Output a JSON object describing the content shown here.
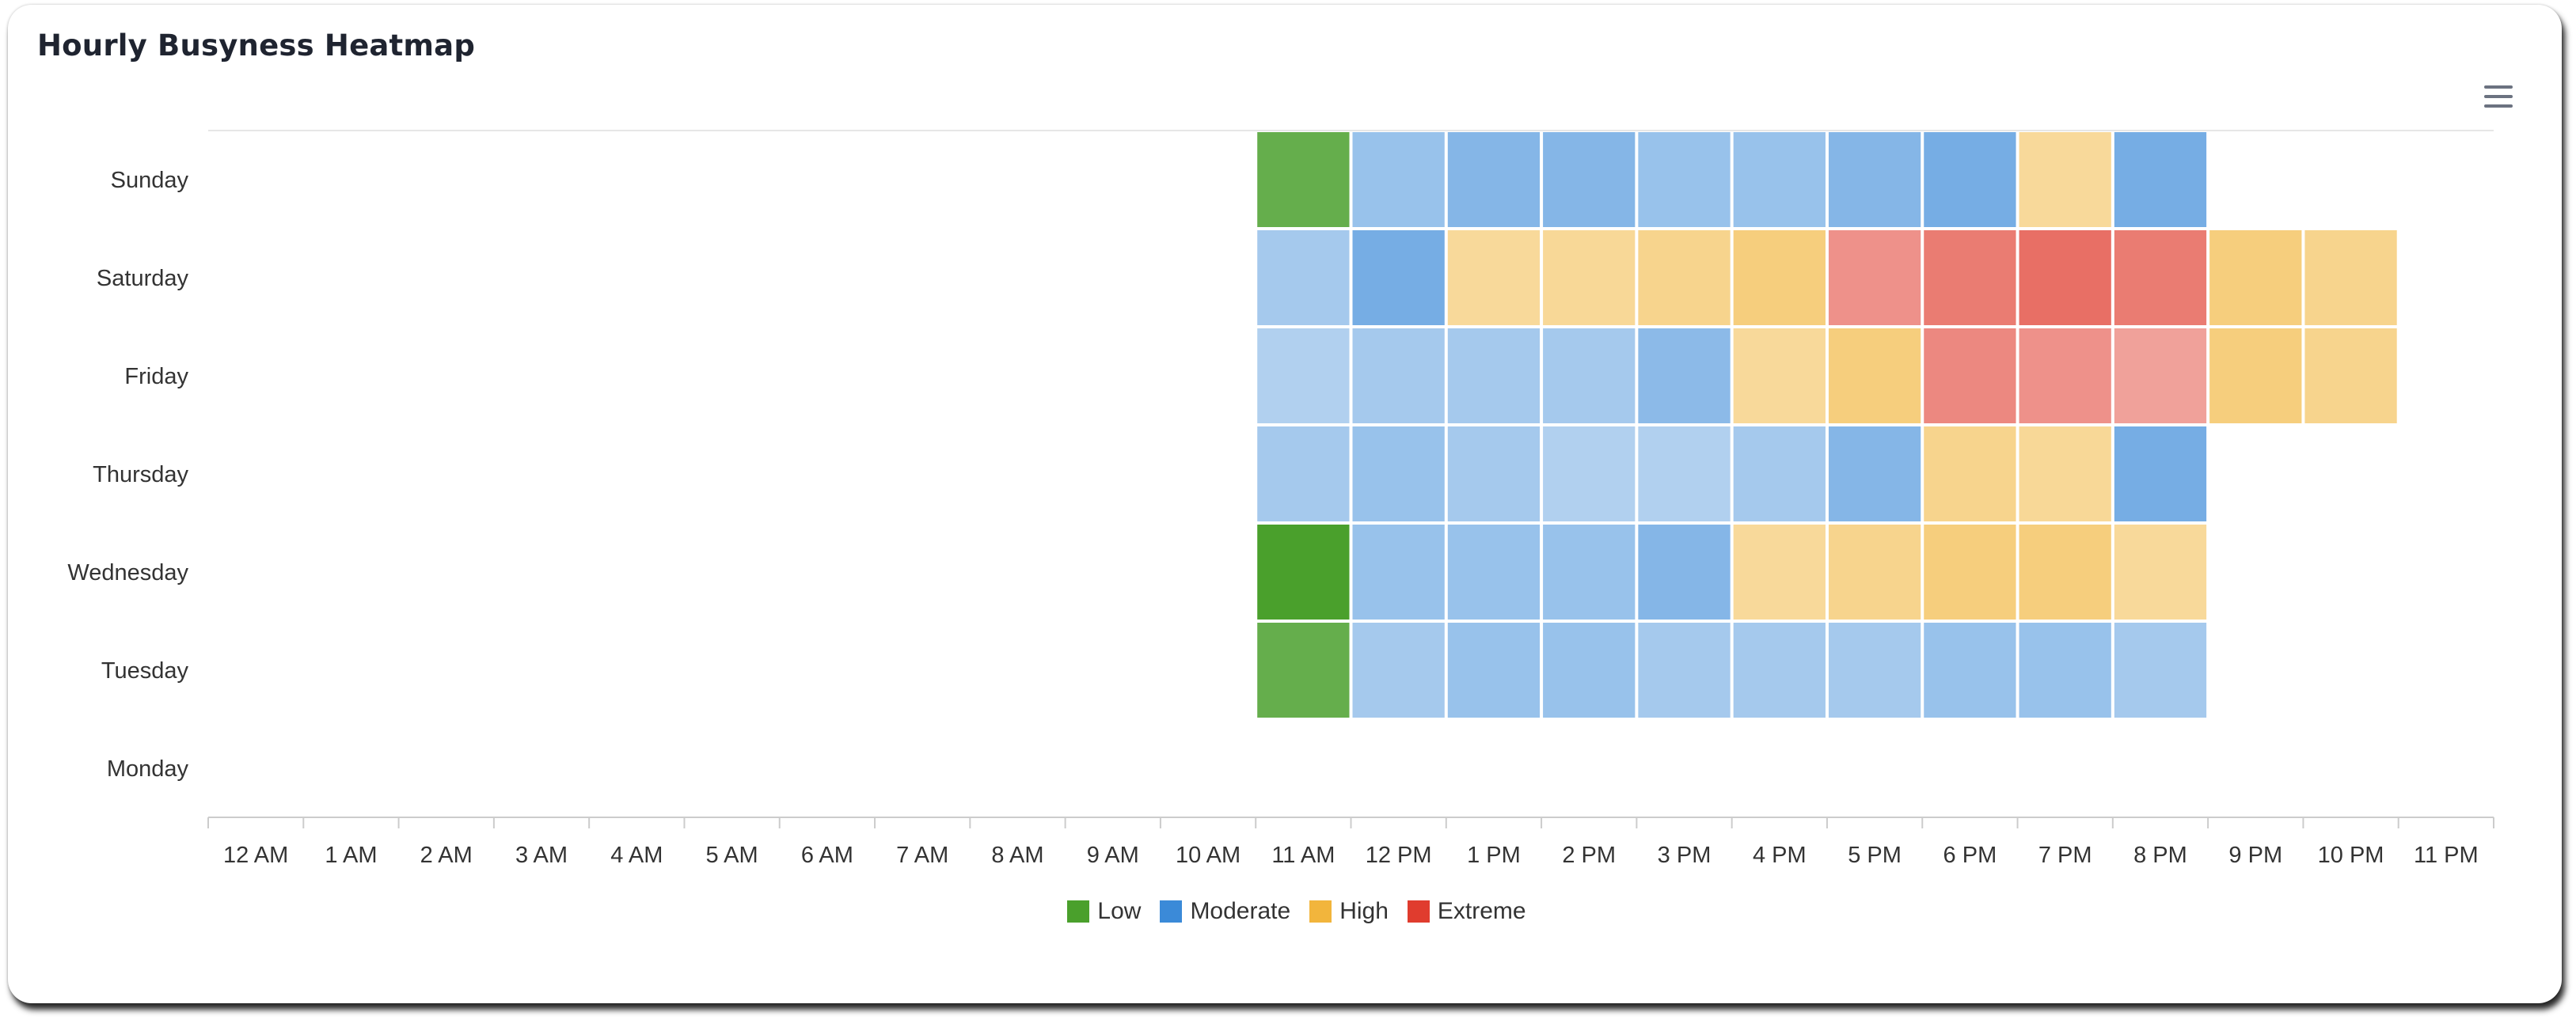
{
  "colors": {
    "low": "#4aa02c",
    "moderate": "#3b8ad8",
    "high": "#f2b53c",
    "extreme": "#e03c2e",
    "axis": "#cccccc",
    "label": "#333333"
  },
  "menu": {
    "icon": "hamburger-menu-icon"
  },
  "chart_data": {
    "type": "heatmap",
    "title": "Hourly Busyness Heatmap",
    "x_categories": [
      "12 AM",
      "1 AM",
      "2 AM",
      "3 AM",
      "4 AM",
      "5 AM",
      "6 AM",
      "7 AM",
      "8 AM",
      "9 AM",
      "10 AM",
      "11 AM",
      "12 PM",
      "1 PM",
      "2 PM",
      "3 PM",
      "4 PM",
      "5 PM",
      "6 PM",
      "7 PM",
      "8 PM",
      "9 PM",
      "10 PM",
      "11 PM"
    ],
    "y_categories": [
      "Sunday",
      "Saturday",
      "Friday",
      "Thursday",
      "Wednesday",
      "Tuesday",
      "Monday"
    ],
    "value_scale": "estimated busyness 0-100",
    "legend": [
      {
        "name": "Low",
        "color_key": "low"
      },
      {
        "name": "Moderate",
        "color_key": "moderate"
      },
      {
        "name": "High",
        "color_key": "high"
      },
      {
        "name": "Extreme",
        "color_key": "extreme"
      }
    ],
    "cells": [
      {
        "day": "Sunday",
        "hour": "11 AM",
        "level": "Low",
        "value": 18
      },
      {
        "day": "Sunday",
        "hour": "12 PM",
        "level": "Moderate",
        "value": 36
      },
      {
        "day": "Sunday",
        "hour": "1 PM",
        "level": "Moderate",
        "value": 42
      },
      {
        "day": "Sunday",
        "hour": "2 PM",
        "level": "Moderate",
        "value": 42
      },
      {
        "day": "Sunday",
        "hour": "3 PM",
        "level": "Moderate",
        "value": 36
      },
      {
        "day": "Sunday",
        "hour": "4 PM",
        "level": "Moderate",
        "value": 36
      },
      {
        "day": "Sunday",
        "hour": "5 PM",
        "level": "Moderate",
        "value": 42
      },
      {
        "day": "Sunday",
        "hour": "6 PM",
        "level": "Moderate",
        "value": 47
      },
      {
        "day": "Sunday",
        "hour": "7 PM",
        "level": "High",
        "value": 54
      },
      {
        "day": "Sunday",
        "hour": "8 PM",
        "level": "Moderate",
        "value": 47
      },
      {
        "day": "Saturday",
        "hour": "11 AM",
        "level": "Moderate",
        "value": 32
      },
      {
        "day": "Saturday",
        "hour": "12 PM",
        "level": "Moderate",
        "value": 47
      },
      {
        "day": "Saturday",
        "hour": "1 PM",
        "level": "High",
        "value": 54
      },
      {
        "day": "Saturday",
        "hour": "2 PM",
        "level": "High",
        "value": 55
      },
      {
        "day": "Saturday",
        "hour": "3 PM",
        "level": "High",
        "value": 58
      },
      {
        "day": "Saturday",
        "hour": "4 PM",
        "level": "High",
        "value": 63
      },
      {
        "day": "Saturday",
        "hour": "5 PM",
        "level": "Extreme",
        "value": 75
      },
      {
        "day": "Saturday",
        "hour": "6 PM",
        "level": "Extreme",
        "value": 82
      },
      {
        "day": "Saturday",
        "hour": "7 PM",
        "level": "Extreme",
        "value": 86
      },
      {
        "day": "Saturday",
        "hour": "8 PM",
        "level": "Extreme",
        "value": 82
      },
      {
        "day": "Saturday",
        "hour": "9 PM",
        "level": "High",
        "value": 63
      },
      {
        "day": "Saturday",
        "hour": "10 PM",
        "level": "High",
        "value": 58
      },
      {
        "day": "Friday",
        "hour": "11 AM",
        "level": "Moderate",
        "value": 28
      },
      {
        "day": "Friday",
        "hour": "12 PM",
        "level": "Moderate",
        "value": 32
      },
      {
        "day": "Friday",
        "hour": "1 PM",
        "level": "Moderate",
        "value": 32
      },
      {
        "day": "Friday",
        "hour": "2 PM",
        "level": "Moderate",
        "value": 32
      },
      {
        "day": "Friday",
        "hour": "3 PM",
        "level": "Moderate",
        "value": 40
      },
      {
        "day": "Friday",
        "hour": "4 PM",
        "level": "High",
        "value": 54
      },
      {
        "day": "Friday",
        "hour": "5 PM",
        "level": "High",
        "value": 63
      },
      {
        "day": "Friday",
        "hour": "6 PM",
        "level": "Extreme",
        "value": 78
      },
      {
        "day": "Friday",
        "hour": "7 PM",
        "level": "Extreme",
        "value": 75
      },
      {
        "day": "Friday",
        "hour": "8 PM",
        "level": "Extreme",
        "value": 70
      },
      {
        "day": "Friday",
        "hour": "9 PM",
        "level": "High",
        "value": 63
      },
      {
        "day": "Friday",
        "hour": "10 PM",
        "level": "High",
        "value": 58
      },
      {
        "day": "Thursday",
        "hour": "11 AM",
        "level": "Moderate",
        "value": 32
      },
      {
        "day": "Thursday",
        "hour": "12 PM",
        "level": "Moderate",
        "value": 36
      },
      {
        "day": "Thursday",
        "hour": "1 PM",
        "level": "Moderate",
        "value": 32
      },
      {
        "day": "Thursday",
        "hour": "2 PM",
        "level": "Moderate",
        "value": 28
      },
      {
        "day": "Thursday",
        "hour": "3 PM",
        "level": "Moderate",
        "value": 28
      },
      {
        "day": "Thursday",
        "hour": "4 PM",
        "level": "Moderate",
        "value": 32
      },
      {
        "day": "Thursday",
        "hour": "5 PM",
        "level": "Moderate",
        "value": 42
      },
      {
        "day": "Thursday",
        "hour": "6 PM",
        "level": "High",
        "value": 58
      },
      {
        "day": "Thursday",
        "hour": "7 PM",
        "level": "High",
        "value": 55
      },
      {
        "day": "Thursday",
        "hour": "8 PM",
        "level": "Moderate",
        "value": 47
      },
      {
        "day": "Wednesday",
        "hour": "11 AM",
        "level": "Low",
        "value": 10
      },
      {
        "day": "Wednesday",
        "hour": "12 PM",
        "level": "Moderate",
        "value": 36
      },
      {
        "day": "Wednesday",
        "hour": "1 PM",
        "level": "Moderate",
        "value": 36
      },
      {
        "day": "Wednesday",
        "hour": "2 PM",
        "level": "Moderate",
        "value": 36
      },
      {
        "day": "Wednesday",
        "hour": "3 PM",
        "level": "Moderate",
        "value": 42
      },
      {
        "day": "Wednesday",
        "hour": "4 PM",
        "level": "High",
        "value": 54
      },
      {
        "day": "Wednesday",
        "hour": "5 PM",
        "level": "High",
        "value": 58
      },
      {
        "day": "Wednesday",
        "hour": "6 PM",
        "level": "High",
        "value": 63
      },
      {
        "day": "Wednesday",
        "hour": "7 PM",
        "level": "High",
        "value": 63
      },
      {
        "day": "Wednesday",
        "hour": "8 PM",
        "level": "High",
        "value": 54
      },
      {
        "day": "Tuesday",
        "hour": "11 AM",
        "level": "Low",
        "value": 18
      },
      {
        "day": "Tuesday",
        "hour": "12 PM",
        "level": "Moderate",
        "value": 32
      },
      {
        "day": "Tuesday",
        "hour": "1 PM",
        "level": "Moderate",
        "value": 36
      },
      {
        "day": "Tuesday",
        "hour": "2 PM",
        "level": "Moderate",
        "value": 36
      },
      {
        "day": "Tuesday",
        "hour": "3 PM",
        "level": "Moderate",
        "value": 32
      },
      {
        "day": "Tuesday",
        "hour": "4 PM",
        "level": "Moderate",
        "value": 32
      },
      {
        "day": "Tuesday",
        "hour": "5 PM",
        "level": "Moderate",
        "value": 32
      },
      {
        "day": "Tuesday",
        "hour": "6 PM",
        "level": "Moderate",
        "value": 36
      },
      {
        "day": "Tuesday",
        "hour": "7 PM",
        "level": "Moderate",
        "value": 36
      },
      {
        "day": "Tuesday",
        "hour": "8 PM",
        "level": "Moderate",
        "value": 32
      }
    ]
  }
}
